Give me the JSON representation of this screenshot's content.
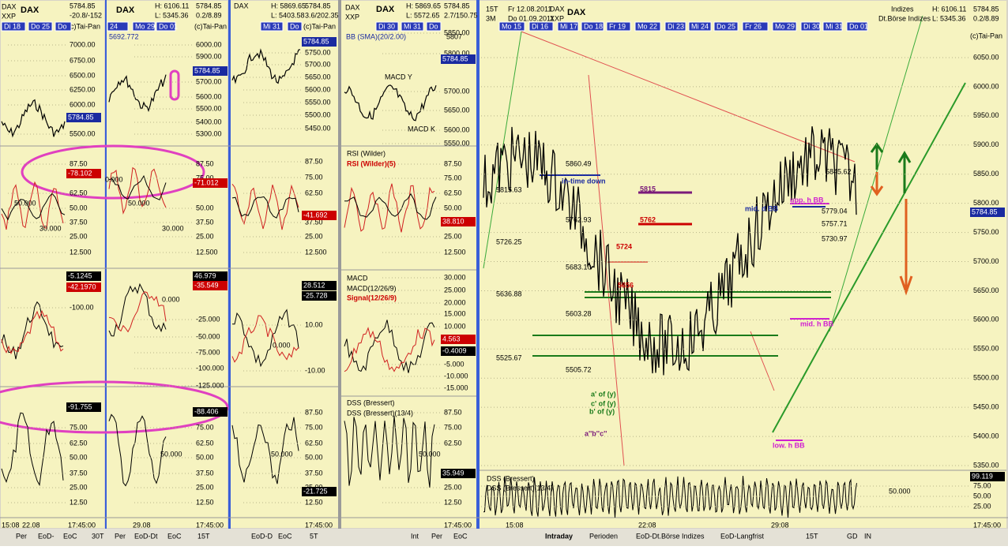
{
  "panels": [
    {
      "header": [
        "DAX",
        "DAX",
        "XXP",
        "5784.85",
        "-20.8/-152",
        "(c)Tai-Pan"
      ],
      "dates": [
        "Di 18",
        "Do 25",
        "Do"
      ],
      "axis": [
        [
          "7000.00",
          "6750.00",
          "6500.00",
          "6250.00",
          "6000.00",
          "5500.00"
        ],
        [
          "87.50",
          "62.50",
          "50.00",
          "37.50",
          "25.00",
          "12.500"
        ],
        [
          "-100.00"
        ],
        [
          "75.00",
          "62.50",
          "50.00",
          "37.50",
          "25.00",
          "12.50"
        ]
      ],
      "boxes": [
        "5784.85",
        "-78.102",
        "-5.1245",
        "-42.1970",
        "-91.755"
      ],
      "notes": [
        "50.000",
        "30.000"
      ],
      "x_labels": [
        "15:08",
        "22.08",
        "17:45:00"
      ],
      "tabs": [
        "Per",
        "EoD-",
        "EoC",
        "30T"
      ]
    },
    {
      "header": [
        "DAX",
        "H: 6106.11",
        "L: 5345.36",
        "5784.85",
        "0.2/8.89",
        "(c)Tai-Pan",
        "5692.772"
      ],
      "dates": [
        "24",
        "Mo 29",
        "Do 01"
      ],
      "axis": [
        [
          "6000.00",
          "5900.00",
          "5700.00",
          "5600.00",
          "5500.00",
          "5400.00",
          "5300.00"
        ],
        [
          "87.50",
          "75.00",
          "50.00",
          "37.50",
          "25.00",
          "12.500"
        ],
        [
          "-25.000",
          "-50.000",
          "-75.000",
          "-100.000",
          "-125.000"
        ],
        [
          "75.00",
          "62.50",
          "50.00",
          "37.50",
          "25.00",
          "12.50"
        ]
      ],
      "boxes": [
        "5784.85",
        "-71.012",
        "46.979",
        "-35.549",
        "-88.406"
      ],
      "notes": [
        "0.000",
        "50.000",
        "30.000",
        "0.000",
        "50.000"
      ],
      "x_labels": [
        "29.08",
        "17:45:00"
      ],
      "tabs": [
        "Per",
        "EoD-Dt",
        "EoC",
        "15T"
      ]
    },
    {
      "header": [
        "DAX",
        "H: 5869.65",
        "L: 5403.58",
        "5784.85",
        "3.6/202.35",
        "(c)Tai-Pan"
      ],
      "dates": [
        "Mi 31",
        "Do"
      ],
      "axis": [
        [
          "5750.00",
          "5700.00",
          "5650.00",
          "5600.00",
          "5550.00",
          "5500.00",
          "5450.00"
        ],
        [
          "87.50",
          "75.00",
          "62.50",
          "37.50",
          "25.00",
          "12.500"
        ],
        [
          "10.00",
          "-10.00"
        ],
        [
          "87.50",
          "75.00",
          "62.50",
          "50.00",
          "37.50",
          "25.00",
          "12.50"
        ]
      ],
      "boxes": [
        "5784.85",
        "-41.692",
        "28.512",
        "-25.728",
        "-21.725"
      ],
      "notes": [
        "0.000",
        "50.000"
      ],
      "x_labels": [
        "17:45:00"
      ],
      "tabs": [
        "EoD-D",
        "EoC",
        "5T"
      ]
    },
    {
      "header": [
        "DAX",
        "XXP",
        "DAX",
        "H: 5869.65",
        "L: 5572.65",
        "5784.85",
        "2.7/150.75",
        "BB (SMA)(20/2.00)",
        "5807"
      ],
      "dates": [
        "Di 30",
        "Mi 31",
        "Do"
      ],
      "axis": [
        [
          "5850.00",
          "5800.00",
          "5700.00",
          "5650.00",
          "5600.00",
          "5550.00"
        ],
        [
          "87.50",
          "75.00",
          "62.50",
          "50.00",
          "25.00",
          "12.500"
        ],
        [
          "30.000",
          "25.000",
          "20.000",
          "15.000",
          "10.000",
          "-5.000",
          "-10.000",
          "-15.000"
        ],
        [
          "87.50",
          "75.00",
          "62.50",
          "25.00",
          "12.50"
        ]
      ],
      "boxes": [
        "5784.85",
        "38.810",
        "4.563",
        "-0.4009",
        "35.949"
      ],
      "notes": [
        "MACD Y",
        "MACD K",
        "RSI (Wilder)",
        "RSI (Wilder)(5)",
        "MACD",
        "MACD(12/26/9)",
        "Signal(12/26/9)",
        "DSS (Bressert)",
        "DSS (Bressert)(13/4)",
        "50.000"
      ],
      "x_labels": [
        "17:45:00"
      ],
      "tabs": [
        "Int",
        "Per",
        "EoC"
      ]
    },
    {
      "header": [
        "15T",
        "Fr 12.08.2011",
        "3M",
        "Do 01.09.2011",
        "DAX",
        "XXP",
        "DAX",
        "Indizes",
        "Dt.Börse Indizes",
        "H: 6106.11",
        "L: 5345.36",
        "5784.85",
        "0.2/8.89",
        "(c)Tai-Pan"
      ],
      "dates": [
        "Mo 15",
        "Di 16",
        "Mi 17",
        "Do 18",
        "Fr 19",
        "Mo 22",
        "Di 23",
        "Mi 24",
        "Do 25",
        "Fr 26",
        "Mo 29",
        "Di 30",
        "Mi 31",
        "Do 01"
      ],
      "axis": [
        [
          "6050.00",
          "6000.00",
          "5950.00",
          "5900.00",
          "5850.00",
          "5800.00",
          "5750.00",
          "5700.00",
          "5650.00",
          "5600.00",
          "5550.00",
          "5500.00",
          "5450.00",
          "5400.00",
          "5350.00"
        ],
        [
          "75.00",
          "50.00",
          "25.00"
        ]
      ],
      "boxes": [
        "5784.85",
        "99.119"
      ],
      "notes": [
        "5815.63",
        "5726.25",
        "5636.88",
        "5525.67",
        "5860.49",
        "5762.93",
        "5683.10",
        "5603.28",
        "5505.72",
        "in-time down",
        "5815",
        "5762",
        "5724",
        "5656",
        "mid. d BB",
        "upp. h BB",
        "mid. h BB",
        "low. h BB",
        "a' of (y)",
        "c' of (y)",
        "b' of (y)",
        "a''b''c''",
        "5845.62",
        "5779.04",
        "5757.71",
        "5730.97",
        "DSS (Bressert)",
        "DSS (Bressert)(13/4)",
        "50.000"
      ],
      "x_labels": [
        "15:08",
        "22:08",
        "29:08",
        "17:45:00"
      ],
      "tabs": [
        "Intraday",
        "Perioden",
        "EoD-Dt.Börse Indizes",
        "EoD-Langfrist",
        "15T",
        "GD",
        "IN"
      ]
    }
  ]
}
